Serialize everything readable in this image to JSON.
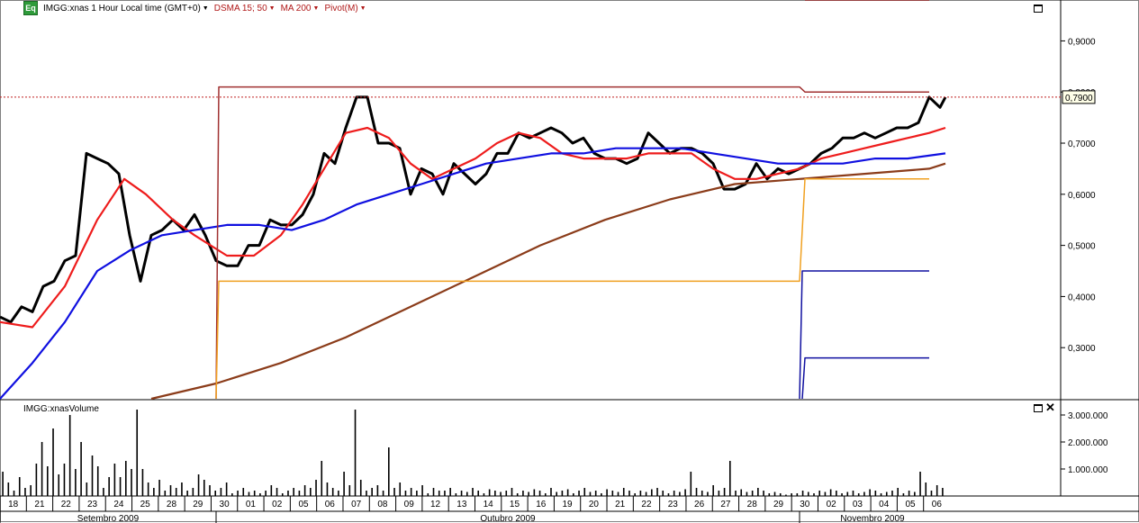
{
  "toolbar": {
    "logo": "Eq",
    "symbol_label": "IMGG:xnas 1 Hour Local time (GMT+0)",
    "indicators": [
      {
        "label": "DSMA 15; 50",
        "color": "#b01818"
      },
      {
        "label": "MA 200",
        "color": "#b01818"
      },
      {
        "label": "Pivot(M)",
        "color": "#b01818"
      }
    ],
    "caret_icon": "caret-down-icon"
  },
  "volume_panel": {
    "label": "IMGG:xnasVolume",
    "close_icon": "close-icon",
    "maximize_icon": "maximize-icon"
  },
  "chart_data": [
    {
      "type": "line",
      "panel": "price",
      "ylim": [
        0.2,
        0.98
      ],
      "yticks": [
        "0,3000",
        "0,4000",
        "0,5000",
        "0,6000",
        "0,7000",
        "0,8000",
        "0,9000"
      ],
      "last_price_label": "0,7900",
      "last_price": 0.79,
      "x_range": [
        0,
        175
      ],
      "series": [
        {
          "key": "price",
          "color": "#000000",
          "x": [
            0,
            2,
            4,
            6,
            8,
            10,
            12,
            14,
            16,
            18,
            20,
            22,
            24,
            26,
            28,
            30,
            32,
            34,
            36,
            38,
            40,
            42,
            44,
            46,
            48,
            50,
            52,
            54,
            56,
            58,
            60,
            62,
            64,
            66,
            68,
            70,
            72,
            74,
            76,
            78,
            80,
            82,
            84,
            86,
            88,
            90,
            92,
            94,
            96,
            98,
            100,
            102,
            104,
            106,
            108,
            110,
            112,
            114,
            116,
            118,
            120,
            122,
            124,
            126,
            128,
            130,
            132,
            134,
            136,
            138,
            140,
            142,
            144,
            146,
            148,
            150,
            152,
            154,
            156,
            158,
            160,
            162,
            164,
            166,
            168,
            170,
            172,
            174,
            175
          ],
          "y": [
            0.36,
            0.35,
            0.38,
            0.37,
            0.42,
            0.43,
            0.47,
            0.48,
            0.68,
            0.67,
            0.66,
            0.64,
            0.52,
            0.43,
            0.52,
            0.53,
            0.55,
            0.53,
            0.56,
            0.52,
            0.47,
            0.46,
            0.46,
            0.5,
            0.5,
            0.55,
            0.54,
            0.54,
            0.56,
            0.6,
            0.68,
            0.66,
            0.73,
            0.79,
            0.79,
            0.7,
            0.7,
            0.69,
            0.6,
            0.65,
            0.64,
            0.6,
            0.66,
            0.64,
            0.62,
            0.64,
            0.68,
            0.68,
            0.72,
            0.71,
            0.72,
            0.73,
            0.72,
            0.7,
            0.71,
            0.68,
            0.67,
            0.67,
            0.66,
            0.67,
            0.72,
            0.7,
            0.68,
            0.69,
            0.69,
            0.68,
            0.66,
            0.61,
            0.61,
            0.62,
            0.66,
            0.63,
            0.65,
            0.64,
            0.65,
            0.66,
            0.68,
            0.69,
            0.71,
            0.71,
            0.72,
            0.71,
            0.72,
            0.73,
            0.73,
            0.74,
            0.79,
            0.77,
            0.79
          ]
        },
        {
          "key": "dsma-15",
          "color": "#ee1c1c",
          "x": [
            0,
            6,
            12,
            18,
            23,
            27,
            32,
            36,
            42,
            47,
            52,
            56,
            60,
            64,
            68,
            72,
            76,
            80,
            84,
            88,
            92,
            96,
            100,
            104,
            108,
            112,
            116,
            120,
            124,
            128,
            132,
            136,
            140,
            144,
            148,
            152,
            156,
            160,
            164,
            168,
            172,
            175
          ],
          "y": [
            0.35,
            0.34,
            0.42,
            0.55,
            0.63,
            0.6,
            0.55,
            0.52,
            0.48,
            0.48,
            0.52,
            0.58,
            0.65,
            0.72,
            0.73,
            0.71,
            0.66,
            0.63,
            0.65,
            0.67,
            0.7,
            0.72,
            0.71,
            0.68,
            0.67,
            0.67,
            0.67,
            0.68,
            0.68,
            0.68,
            0.65,
            0.63,
            0.63,
            0.64,
            0.65,
            0.67,
            0.68,
            0.69,
            0.7,
            0.71,
            0.72,
            0.73
          ]
        },
        {
          "key": "dsma-50",
          "color": "#1010e0",
          "x": [
            0,
            6,
            12,
            18,
            24,
            30,
            36,
            42,
            48,
            54,
            60,
            66,
            72,
            78,
            84,
            90,
            96,
            102,
            108,
            114,
            120,
            126,
            132,
            138,
            144,
            150,
            156,
            162,
            168,
            175
          ],
          "y": [
            0.2,
            0.27,
            0.35,
            0.45,
            0.49,
            0.52,
            0.53,
            0.54,
            0.54,
            0.53,
            0.55,
            0.58,
            0.6,
            0.62,
            0.64,
            0.66,
            0.67,
            0.68,
            0.68,
            0.69,
            0.69,
            0.69,
            0.68,
            0.67,
            0.66,
            0.66,
            0.66,
            0.67,
            0.67,
            0.68
          ]
        },
        {
          "key": "ma-200",
          "color": "#8b3c1a",
          "x": [
            28,
            40,
            52,
            64,
            76,
            88,
            100,
            112,
            124,
            136,
            148,
            160,
            172,
            175
          ],
          "y": [
            0.2,
            0.23,
            0.27,
            0.32,
            0.38,
            0.44,
            0.5,
            0.55,
            0.59,
            0.62,
            0.63,
            0.64,
            0.65,
            0.66
          ]
        },
        {
          "key": "pivot-r",
          "color": "#a03030",
          "x": [
            40,
            40.5,
            148,
            149,
            172
          ],
          "y": [
            0.2,
            0.81,
            0.81,
            0.8,
            0.8
          ]
        },
        {
          "key": "pivot-p",
          "color": "#f0a020",
          "x": [
            40,
            40.5,
            148,
            149,
            172
          ],
          "y": [
            0.2,
            0.43,
            0.43,
            0.63,
            0.63
          ]
        },
        {
          "key": "pivot-s1",
          "color": "#1010a0",
          "x": [
            148,
            148.5,
            172
          ],
          "y": [
            0.2,
            0.45,
            0.45
          ]
        },
        {
          "key": "pivot-s2",
          "color": "#1010a0",
          "x": [
            148.5,
            149,
            172
          ],
          "y": [
            0.2,
            0.28,
            0.28
          ]
        },
        {
          "key": "pivot-r2",
          "color": "#a03030",
          "x": [
            149,
            172
          ],
          "y": [
            0.98,
            0.98
          ]
        }
      ]
    },
    {
      "type": "bar",
      "panel": "volume",
      "ylim": [
        0,
        3300000
      ],
      "yticks": [
        "1.000.000",
        "2.000.000",
        "3.000.000"
      ],
      "x_range": [
        0,
        175
      ],
      "values": [
        900000,
        500000,
        200000,
        700000,
        300000,
        400000,
        1200000,
        2000000,
        1100000,
        2500000,
        800000,
        1200000,
        3000000,
        1000000,
        2000000,
        500000,
        1500000,
        1100000,
        300000,
        700000,
        1200000,
        700000,
        1300000,
        1000000,
        3200000,
        1000000,
        500000,
        300000,
        600000,
        200000,
        400000,
        300000,
        500000,
        200000,
        300000,
        800000,
        600000,
        400000,
        200000,
        300000,
        500000,
        100000,
        200000,
        300000,
        150000,
        200000,
        100000,
        200000,
        400000,
        300000,
        100000,
        200000,
        300000,
        200000,
        400000,
        300000,
        600000,
        1300000,
        500000,
        300000,
        200000,
        900000,
        400000,
        3200000,
        600000,
        200000,
        300000,
        400000,
        200000,
        1800000,
        300000,
        500000,
        200000,
        300000,
        200000,
        400000,
        100000,
        300000,
        200000,
        200000,
        300000,
        100000,
        200000,
        150000,
        300000,
        200000,
        100000,
        250000,
        200000,
        150000,
        200000,
        300000,
        100000,
        200000,
        150000,
        250000,
        200000,
        100000,
        300000,
        150000,
        200000,
        250000,
        100000,
        200000,
        300000,
        150000,
        200000,
        100000,
        250000,
        200000,
        150000,
        300000,
        200000,
        100000,
        200000,
        150000,
        250000,
        300000,
        200000,
        100000,
        200000,
        150000,
        250000,
        900000,
        300000,
        200000,
        150000,
        400000,
        200000,
        300000,
        1300000,
        200000,
        250000,
        150000,
        200000,
        300000,
        200000,
        100000,
        150000,
        100000,
        50000,
        100000,
        100000,
        200000,
        150000,
        100000,
        200000,
        150000,
        250000,
        200000,
        100000,
        150000,
        200000,
        100000,
        150000,
        250000,
        200000,
        100000,
        150000,
        200000,
        300000,
        100000,
        200000,
        150000,
        900000,
        500000,
        200000,
        400000,
        300000
      ]
    }
  ],
  "x_axis": {
    "day_ticks": [
      "18",
      "21",
      "22",
      "23",
      "24",
      "25",
      "28",
      "29",
      "30",
      "01",
      "02",
      "05",
      "06",
      "07",
      "08",
      "09",
      "12",
      "13",
      "14",
      "15",
      "16",
      "19",
      "20",
      "21",
      "22",
      "23",
      "26",
      "27",
      "28",
      "29",
      "30",
      "02",
      "03",
      "04",
      "05",
      "06"
    ],
    "months": [
      {
        "label": "Setembro 2009",
        "start": 0,
        "end": 40
      },
      {
        "label": "Outubro 2009",
        "start": 40,
        "end": 148
      },
      {
        "label": "Novembro 2009",
        "start": 148,
        "end": 175
      }
    ]
  }
}
